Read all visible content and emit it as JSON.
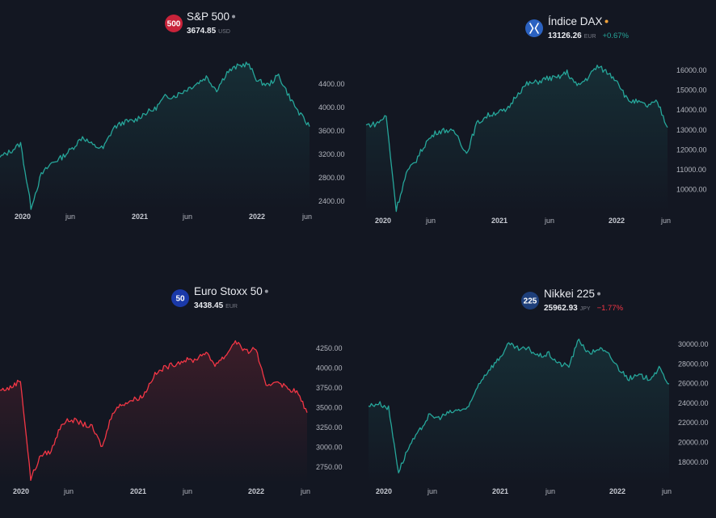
{
  "colors": {
    "background": "#131722",
    "up": "#26a69a",
    "down": "#f23645",
    "text": "#b2b5be"
  },
  "chart_data": [
    {
      "type": "line",
      "title": "S&P 500",
      "price": "3674.85",
      "currency": "USD",
      "change": "",
      "badge": {
        "text": "500",
        "color": "#c8233a"
      },
      "line_color": "#26a69a",
      "x_labels": [
        "2020",
        "jun",
        "2021",
        "jun",
        "2022",
        "jun"
      ],
      "x_label_bold": [
        true,
        false,
        true,
        false,
        true,
        false
      ],
      "y_ticks": [
        "4400.00",
        "4000.00",
        "3600.00",
        "3200.00",
        "2800.00",
        "2400.00"
      ],
      "ylim": [
        2200,
        4900
      ],
      "x": [
        "2019-12",
        "2020-01",
        "2020-02",
        "2020-03",
        "2020-04",
        "2020-05",
        "2020-06",
        "2020-07",
        "2020-08",
        "2020-09",
        "2020-10",
        "2020-11",
        "2020-12",
        "2021-01",
        "2021-02",
        "2021-03",
        "2021-04",
        "2021-05",
        "2021-06",
        "2021-07",
        "2021-08",
        "2021-09",
        "2021-10",
        "2021-11",
        "2021-12",
        "2022-01",
        "2022-02",
        "2022-03",
        "2022-04",
        "2022-05",
        "2022-06"
      ],
      "values": [
        3150,
        3250,
        3380,
        2300,
        2850,
        3050,
        3150,
        3300,
        3500,
        3350,
        3300,
        3650,
        3750,
        3770,
        3900,
        3970,
        4180,
        4200,
        4300,
        4400,
        4520,
        4300,
        4600,
        4700,
        4750,
        4450,
        4380,
        4550,
        4200,
        3900,
        3675
      ]
    },
    {
      "type": "line",
      "title": "Índice DAX",
      "price": "13126.26",
      "currency": "EUR",
      "change": "+0.67%",
      "badge": {
        "text": "X",
        "color": "#2b62c1"
      },
      "line_color": "#26a69a",
      "x_labels": [
        "2020",
        "jun",
        "2021",
        "jun",
        "2022",
        "jun"
      ],
      "x_label_bold": [
        true,
        false,
        true,
        false,
        true,
        false
      ],
      "y_ticks": [
        "16000.00",
        "15000.00",
        "14000.00",
        "13000.00",
        "12000.00",
        "11000.00",
        "10000.00"
      ],
      "ylim": [
        8500,
        16800
      ],
      "x": [
        "2019-12",
        "2020-01",
        "2020-02",
        "2020-03",
        "2020-04",
        "2020-05",
        "2020-06",
        "2020-07",
        "2020-08",
        "2020-09",
        "2020-10",
        "2020-11",
        "2020-12",
        "2021-01",
        "2021-02",
        "2021-03",
        "2021-04",
        "2021-05",
        "2021-06",
        "2021-07",
        "2021-08",
        "2021-09",
        "2021-10",
        "2021-11",
        "2021-12",
        "2022-01",
        "2022-02",
        "2022-03",
        "2022-04",
        "2022-05",
        "2022-06"
      ],
      "values": [
        13250,
        13300,
        13700,
        9000,
        10800,
        11500,
        12400,
        12900,
        13000,
        12800,
        11800,
        13300,
        13700,
        13900,
        13950,
        14800,
        15300,
        15400,
        15600,
        15600,
        15900,
        15200,
        15600,
        16200,
        15900,
        15500,
        14500,
        14400,
        14200,
        14400,
        13126
      ]
    },
    {
      "type": "line",
      "title": "Euro Stoxx 50",
      "price": "3438.45",
      "currency": "EUR",
      "change": "",
      "badge": {
        "text": "50",
        "color": "#1a39a8"
      },
      "line_color": "#f23645",
      "x_labels": [
        "2020",
        "jun",
        "2021",
        "jun",
        "2022",
        "jun"
      ],
      "x_label_bold": [
        true,
        false,
        true,
        false,
        true,
        false
      ],
      "y_ticks": [
        "4250.00",
        "4000.00",
        "3750.00",
        "3500.00",
        "3250.00",
        "3000.00",
        "2750.00"
      ],
      "ylim": [
        2550,
        4450
      ],
      "x": [
        "2019-12",
        "2020-01",
        "2020-02",
        "2020-03",
        "2020-04",
        "2020-05",
        "2020-06",
        "2020-07",
        "2020-08",
        "2020-09",
        "2020-10",
        "2020-11",
        "2020-12",
        "2021-01",
        "2021-02",
        "2021-03",
        "2021-04",
        "2021-05",
        "2021-06",
        "2021-07",
        "2021-08",
        "2021-09",
        "2021-10",
        "2021-11",
        "2021-12",
        "2022-01",
        "2022-02",
        "2022-03",
        "2022-04",
        "2022-05",
        "2022-06"
      ],
      "values": [
        3720,
        3750,
        3850,
        2600,
        2900,
        2950,
        3300,
        3350,
        3300,
        3250,
        3000,
        3450,
        3550,
        3600,
        3650,
        3900,
        4000,
        4050,
        4100,
        4100,
        4200,
        4050,
        4150,
        4350,
        4200,
        4250,
        3750,
        3850,
        3750,
        3700,
        3438
      ]
    },
    {
      "type": "line",
      "title": "Nikkei 225",
      "price": "25962.93",
      "currency": "JPY",
      "change": "−1.77%",
      "badge": {
        "text": "225",
        "color": "#1e3f7a"
      },
      "line_color": "#26a69a",
      "x_labels": [
        "2020",
        "jun",
        "2021",
        "jun",
        "2022",
        "jun"
      ],
      "x_label_bold": [
        true,
        false,
        true,
        false,
        true,
        false
      ],
      "y_ticks": [
        "30000.00",
        "28000.00",
        "26000.00",
        "24000.00",
        "22000.00",
        "20000.00",
        "18000.00"
      ],
      "ylim": [
        16300,
        31300
      ],
      "x": [
        "2019-12",
        "2020-01",
        "2020-02",
        "2020-03",
        "2020-04",
        "2020-05",
        "2020-06",
        "2020-07",
        "2020-08",
        "2020-09",
        "2020-10",
        "2020-11",
        "2020-12",
        "2021-01",
        "2021-02",
        "2021-03",
        "2021-04",
        "2021-05",
        "2021-06",
        "2021-07",
        "2021-08",
        "2021-09",
        "2021-10",
        "2021-11",
        "2021-12",
        "2022-01",
        "2022-02",
        "2022-03",
        "2022-04",
        "2022-05",
        "2022-06"
      ],
      "values": [
        23700,
        24000,
        23500,
        17000,
        19500,
        21000,
        22700,
        22500,
        23000,
        23300,
        23500,
        26000,
        27400,
        28500,
        30000,
        29500,
        29500,
        28800,
        29000,
        28000,
        27800,
        30500,
        29000,
        29600,
        28900,
        27500,
        26500,
        26800,
        26500,
        27500,
        25963
      ]
    }
  ]
}
